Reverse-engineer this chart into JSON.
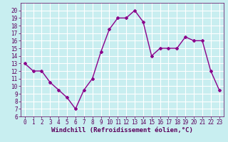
{
  "x": [
    0,
    1,
    2,
    3,
    4,
    5,
    6,
    7,
    8,
    9,
    10,
    11,
    12,
    13,
    14,
    15,
    16,
    17,
    18,
    19,
    20,
    21,
    22,
    23
  ],
  "y": [
    13,
    12,
    12,
    10.5,
    9.5,
    8.5,
    7,
    9.5,
    11,
    14.5,
    17.5,
    19,
    19,
    20,
    18.5,
    14,
    15,
    15,
    15,
    16.5,
    16,
    16,
    12,
    9.5
  ],
  "line_color": "#8B008B",
  "marker": "D",
  "marker_size": 2,
  "bg_color": "#c8eef0",
  "grid_color": "#ffffff",
  "xlabel": "Windchill (Refroidissement éolien,°C)",
  "xlabel_color": "#5c005c",
  "tick_color": "#5c005c",
  "ylim": [
    6,
    21
  ],
  "yticks": [
    6,
    7,
    8,
    9,
    10,
    11,
    12,
    13,
    14,
    15,
    16,
    17,
    18,
    19,
    20
  ],
  "xlim": [
    -0.5,
    23.5
  ],
  "xticks": [
    0,
    1,
    2,
    3,
    4,
    5,
    6,
    7,
    8,
    9,
    10,
    11,
    12,
    13,
    14,
    15,
    16,
    17,
    18,
    19,
    20,
    21,
    22,
    23
  ],
  "linewidth": 1.0,
  "tick_fontsize": 5.5,
  "xlabel_fontsize": 6.5
}
